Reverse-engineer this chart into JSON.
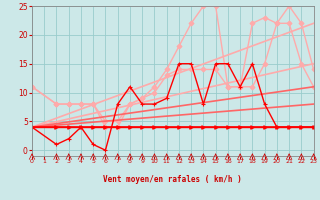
{
  "bg_color": "#cce8e8",
  "grid_color": "#99cccc",
  "xlabel": "Vent moyen/en rafales ( km/h )",
  "xlim": [
    0,
    23
  ],
  "ylim": [
    -1,
    25
  ],
  "xticks": [
    0,
    1,
    2,
    3,
    4,
    5,
    6,
    7,
    8,
    9,
    10,
    11,
    12,
    13,
    14,
    15,
    16,
    17,
    18,
    19,
    20,
    21,
    22,
    23
  ],
  "yticks": [
    0,
    5,
    10,
    15,
    20,
    25
  ],
  "series": [
    {
      "x": [
        0,
        2,
        3,
        4,
        5,
        6,
        7,
        8,
        9,
        10,
        11,
        12,
        13,
        14,
        15,
        16,
        17,
        18,
        19,
        20,
        21,
        22,
        23
      ],
      "y": [
        11,
        8,
        8,
        8,
        8,
        4,
        4,
        8,
        9,
        11,
        14,
        18,
        22,
        25,
        25,
        11,
        11,
        22,
        23,
        22,
        25,
        22,
        14
      ],
      "color": "#ffaaaa",
      "lw": 1.0,
      "marker": "D",
      "ms": 2.5
    },
    {
      "x": [
        0,
        2,
        3,
        4,
        5,
        6,
        7,
        8,
        9,
        10,
        11,
        12,
        13,
        14,
        15,
        16,
        17,
        18,
        19,
        20,
        21,
        22,
        23
      ],
      "y": [
        11,
        8,
        8,
        8,
        8,
        5,
        5,
        8,
        9,
        10,
        13,
        14,
        14,
        14,
        14,
        11,
        11,
        11,
        15,
        22,
        22,
        15,
        11
      ],
      "color": "#ffaaaa",
      "lw": 1.0,
      "marker": "D",
      "ms": 2.5
    },
    {
      "x": [
        0,
        23
      ],
      "y": [
        4,
        22
      ],
      "color": "#ffaaaa",
      "lw": 1.2,
      "marker": null,
      "ms": 0
    },
    {
      "x": [
        0,
        23
      ],
      "y": [
        4,
        15
      ],
      "color": "#ffaaaa",
      "lw": 1.2,
      "marker": null,
      "ms": 0
    },
    {
      "x": [
        0,
        23
      ],
      "y": [
        4,
        11
      ],
      "color": "#ff6666",
      "lw": 1.2,
      "marker": null,
      "ms": 0
    },
    {
      "x": [
        0,
        23
      ],
      "y": [
        4,
        8
      ],
      "color": "#ff6666",
      "lw": 1.2,
      "marker": null,
      "ms": 0
    },
    {
      "x": [
        0,
        23
      ],
      "y": [
        4,
        4
      ],
      "color": "#ff0000",
      "lw": 1.2,
      "marker": null,
      "ms": 0
    },
    {
      "x": [
        0,
        2,
        3,
        4,
        5,
        6,
        7,
        8,
        9,
        10,
        11,
        12,
        13,
        14,
        15,
        16,
        17,
        18,
        19,
        20,
        21,
        22,
        23
      ],
      "y": [
        4,
        1,
        2,
        4,
        1,
        0,
        8,
        11,
        8,
        8,
        9,
        15,
        15,
        8,
        15,
        15,
        11,
        15,
        8,
        4,
        4,
        4,
        4
      ],
      "color": "#ff0000",
      "lw": 1.0,
      "marker": "+",
      "ms": 3.5
    },
    {
      "x": [
        0,
        2,
        3,
        4,
        5,
        6,
        7,
        8,
        9,
        10,
        11,
        12,
        13,
        14,
        15,
        16,
        17,
        18,
        19,
        20,
        21,
        22,
        23
      ],
      "y": [
        4,
        4,
        4,
        4,
        4,
        4,
        4,
        4,
        4,
        4,
        4,
        4,
        4,
        4,
        4,
        4,
        4,
        4,
        4,
        4,
        4,
        4,
        4
      ],
      "color": "#ff0000",
      "lw": 1.0,
      "marker": ">",
      "ms": 2.5
    }
  ],
  "wind_arrows": [
    0,
    2,
    3,
    4,
    5,
    6,
    7,
    8,
    9,
    10,
    11,
    12,
    13,
    14,
    15,
    16,
    17,
    18,
    19,
    20,
    21,
    22,
    23
  ]
}
